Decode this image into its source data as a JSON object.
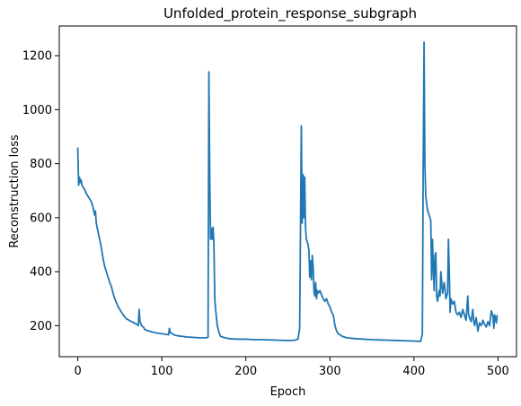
{
  "chart_data": {
    "type": "line",
    "title": "Unfolded_protein_response_subgraph",
    "xlabel": "Epoch",
    "ylabel": "Reconstruction loss",
    "xlim": [
      -22,
      522
    ],
    "ylim": [
      85,
      1310
    ],
    "xticks": [
      0,
      100,
      200,
      300,
      400,
      500
    ],
    "yticks": [
      200,
      400,
      600,
      800,
      1000,
      1200
    ],
    "grid": false,
    "series": [
      {
        "color": "#1f77b4",
        "points": [
          [
            0,
            860
          ],
          [
            1,
            720
          ],
          [
            2,
            750
          ],
          [
            3,
            730
          ],
          [
            4,
            740
          ],
          [
            5,
            720
          ],
          [
            6,
            715
          ],
          [
            8,
            705
          ],
          [
            10,
            690
          ],
          [
            12,
            680
          ],
          [
            14,
            670
          ],
          [
            16,
            660
          ],
          [
            18,
            640
          ],
          [
            20,
            610
          ],
          [
            21,
            625
          ],
          [
            22,
            580
          ],
          [
            24,
            550
          ],
          [
            26,
            520
          ],
          [
            28,
            490
          ],
          [
            30,
            450
          ],
          [
            32,
            420
          ],
          [
            34,
            400
          ],
          [
            36,
            380
          ],
          [
            38,
            360
          ],
          [
            40,
            345
          ],
          [
            42,
            320
          ],
          [
            44,
            300
          ],
          [
            46,
            285
          ],
          [
            48,
            270
          ],
          [
            50,
            260
          ],
          [
            52,
            250
          ],
          [
            54,
            240
          ],
          [
            56,
            232
          ],
          [
            58,
            225
          ],
          [
            60,
            222
          ],
          [
            62,
            218
          ],
          [
            64,
            215
          ],
          [
            66,
            212
          ],
          [
            68,
            208
          ],
          [
            70,
            205
          ],
          [
            72,
            200
          ],
          [
            73,
            260
          ],
          [
            74,
            215
          ],
          [
            76,
            200
          ],
          [
            78,
            195
          ],
          [
            80,
            185
          ],
          [
            85,
            180
          ],
          [
            90,
            175
          ],
          [
            95,
            172
          ],
          [
            100,
            170
          ],
          [
            105,
            168
          ],
          [
            108,
            166
          ],
          [
            109,
            190
          ],
          [
            110,
            175
          ],
          [
            115,
            165
          ],
          [
            120,
            162
          ],
          [
            125,
            160
          ],
          [
            130,
            158
          ],
          [
            135,
            157
          ],
          [
            140,
            156
          ],
          [
            145,
            155
          ],
          [
            150,
            155
          ],
          [
            153,
            155
          ],
          [
            155,
            157
          ],
          [
            156,
            1140
          ],
          [
            157,
            750
          ],
          [
            158,
            520
          ],
          [
            159,
            560
          ],
          [
            160,
            520
          ],
          [
            161,
            565
          ],
          [
            162,
            500
          ],
          [
            163,
            300
          ],
          [
            164,
            260
          ],
          [
            166,
            200
          ],
          [
            168,
            175
          ],
          [
            170,
            160
          ],
          [
            175,
            155
          ],
          [
            180,
            152
          ],
          [
            190,
            150
          ],
          [
            200,
            150
          ],
          [
            210,
            148
          ],
          [
            220,
            148
          ],
          [
            230,
            147
          ],
          [
            240,
            146
          ],
          [
            250,
            145
          ],
          [
            258,
            146
          ],
          [
            262,
            150
          ],
          [
            264,
            190
          ],
          [
            265,
            560
          ],
          [
            266,
            940
          ],
          [
            267,
            580
          ],
          [
            268,
            760
          ],
          [
            269,
            600
          ],
          [
            270,
            750
          ],
          [
            271,
            560
          ],
          [
            272,
            520
          ],
          [
            274,
            500
          ],
          [
            275,
            480
          ],
          [
            276,
            380
          ],
          [
            277,
            440
          ],
          [
            278,
            370
          ],
          [
            279,
            460
          ],
          [
            280,
            420
          ],
          [
            281,
            330
          ],
          [
            282,
            310
          ],
          [
            283,
            360
          ],
          [
            284,
            300
          ],
          [
            285,
            330
          ],
          [
            286,
            320
          ],
          [
            288,
            330
          ],
          [
            290,
            315
          ],
          [
            292,
            300
          ],
          [
            294,
            290
          ],
          [
            296,
            300
          ],
          [
            298,
            280
          ],
          [
            300,
            270
          ],
          [
            302,
            250
          ],
          [
            304,
            240
          ],
          [
            306,
            200
          ],
          [
            308,
            180
          ],
          [
            310,
            170
          ],
          [
            315,
            160
          ],
          [
            320,
            155
          ],
          [
            330,
            152
          ],
          [
            340,
            150
          ],
          [
            350,
            148
          ],
          [
            360,
            147
          ],
          [
            370,
            146
          ],
          [
            380,
            145
          ],
          [
            390,
            144
          ],
          [
            400,
            143
          ],
          [
            405,
            142
          ],
          [
            408,
            142
          ],
          [
            410,
            170
          ],
          [
            411,
            800
          ],
          [
            412,
            1250
          ],
          [
            413,
            800
          ],
          [
            414,
            680
          ],
          [
            416,
            630
          ],
          [
            418,
            610
          ],
          [
            420,
            590
          ],
          [
            421,
            370
          ],
          [
            422,
            520
          ],
          [
            423,
            420
          ],
          [
            424,
            330
          ],
          [
            425,
            460
          ],
          [
            426,
            470
          ],
          [
            427,
            310
          ],
          [
            428,
            290
          ],
          [
            430,
            330
          ],
          [
            431,
            310
          ],
          [
            432,
            400
          ],
          [
            434,
            320
          ],
          [
            436,
            360
          ],
          [
            438,
            300
          ],
          [
            440,
            320
          ],
          [
            441,
            520
          ],
          [
            442,
            400
          ],
          [
            443,
            250
          ],
          [
            444,
            300
          ],
          [
            446,
            280
          ],
          [
            448,
            290
          ],
          [
            450,
            250
          ],
          [
            452,
            240
          ],
          [
            454,
            250
          ],
          [
            456,
            230
          ],
          [
            458,
            260
          ],
          [
            460,
            240
          ],
          [
            462,
            220
          ],
          [
            464,
            310
          ],
          [
            465,
            240
          ],
          [
            466,
            230
          ],
          [
            468,
            215
          ],
          [
            470,
            260
          ],
          [
            471,
            220
          ],
          [
            472,
            200
          ],
          [
            474,
            230
          ],
          [
            476,
            180
          ],
          [
            478,
            210
          ],
          [
            480,
            200
          ],
          [
            482,
            220
          ],
          [
            484,
            205
          ],
          [
            486,
            195
          ],
          [
            488,
            215
          ],
          [
            490,
            200
          ],
          [
            492,
            255
          ],
          [
            494,
            235
          ],
          [
            495,
            190
          ],
          [
            496,
            240
          ],
          [
            498,
            210
          ],
          [
            499,
            240
          ]
        ]
      }
    ]
  }
}
